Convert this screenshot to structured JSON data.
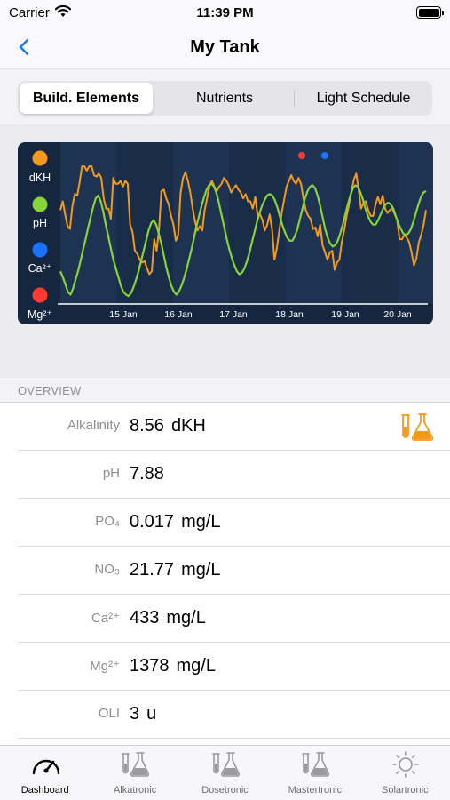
{
  "status_bar": {
    "carrier": "Carrier",
    "time": "11:39 PM"
  },
  "nav": {
    "title": "My Tank",
    "back_icon": "chevron-left-icon"
  },
  "segments": {
    "items": [
      "Build. Elements",
      "Nutrients",
      "Light Schedule"
    ],
    "selected": "Build. Elements"
  },
  "chart": {
    "legend": [
      {
        "label": "dKH",
        "color": "#f39a1e"
      },
      {
        "label": "pH",
        "color": "#86d43a"
      },
      {
        "label": "Ca²⁺",
        "color": "#1a73ff"
      },
      {
        "label": "Mg²⁺",
        "color": "#ff3b30"
      }
    ]
  },
  "chart_data": {
    "type": "line",
    "x_ticks": [
      "15 Jan",
      "16 Jan",
      "17 Jan",
      "18 Jan",
      "19 Jan",
      "20 Jan"
    ],
    "series": [
      {
        "name": "dKH",
        "color": "#f39a1e",
        "values": [
          0.62,
          0.68,
          0.59,
          0.51,
          0.49,
          0.65,
          0.73,
          0.72,
          0.81,
          0.92,
          0.92,
          0.89,
          0.92,
          0.92,
          0.86,
          0.85,
          0.87,
          0.84,
          0.7,
          0.63,
          0.63,
          0.56,
          0.84,
          0.8,
          0.8,
          0.82,
          0.78,
          0.82,
          0.8,
          0.52,
          0.47,
          0.34,
          0.32,
          0.28,
          0.26,
          0.27,
          0.22,
          0.18,
          0.2,
          0.42,
          0.34,
          0.48,
          0.75,
          0.76,
          0.7,
          0.66,
          0.58,
          0.52,
          0.41,
          0.45,
          0.74,
          0.84,
          0.88,
          0.82,
          0.74,
          0.63,
          0.54,
          0.48,
          0.51,
          0.48,
          0.62,
          0.7,
          0.79,
          0.82,
          0.78,
          0.75,
          0.78,
          0.8,
          0.84,
          0.82,
          0.79,
          0.74,
          0.77,
          0.79,
          0.76,
          0.74,
          0.7,
          0.73,
          0.68,
          0.68,
          0.63,
          0.71,
          0.58,
          0.59,
          0.55,
          0.48,
          0.52,
          0.59,
          0.49,
          0.28,
          0.36,
          0.48,
          0.6,
          0.69,
          0.78,
          0.82,
          0.86,
          0.82,
          0.8,
          0.84,
          0.8,
          0.7,
          0.62,
          0.58,
          0.56,
          0.49,
          0.5,
          0.44,
          0.52,
          0.38,
          0.33,
          0.28,
          0.33,
          0.34,
          0.21,
          0.26,
          0.28,
          0.4,
          0.48,
          0.58,
          0.66,
          0.75,
          0.83,
          0.87,
          0.76,
          0.63,
          0.67,
          0.68,
          0.62,
          0.58,
          0.58,
          0.66,
          0.71,
          0.66,
          0.72,
          0.63,
          0.6,
          0.62,
          0.63,
          0.59,
          0.55,
          0.42,
          0.42,
          0.45,
          0.43,
          0.4,
          0.33,
          0.24,
          0.29,
          0.4,
          0.45,
          0.52,
          0.62
        ]
      },
      {
        "name": "pH",
        "color": "#86d43a",
        "values": [
          0.2,
          0.16,
          0.11,
          0.06,
          0.04,
          0.08,
          0.14,
          0.2,
          0.27,
          0.35,
          0.42,
          0.5,
          0.57,
          0.64,
          0.7,
          0.72,
          0.68,
          0.61,
          0.52,
          0.44,
          0.36,
          0.28,
          0.22,
          0.16,
          0.1,
          0.06,
          0.04,
          0.03,
          0.05,
          0.09,
          0.14,
          0.2,
          0.27,
          0.34,
          0.41,
          0.48,
          0.53,
          0.55,
          0.52,
          0.46,
          0.39,
          0.31,
          0.23,
          0.16,
          0.1,
          0.06,
          0.04,
          0.06,
          0.1,
          0.15,
          0.21,
          0.28,
          0.35,
          0.43,
          0.51,
          0.58,
          0.65,
          0.71,
          0.76,
          0.79,
          0.8,
          0.78,
          0.73,
          0.66,
          0.58,
          0.5,
          0.42,
          0.35,
          0.29,
          0.24,
          0.2,
          0.18,
          0.19,
          0.22,
          0.27,
          0.33,
          0.4,
          0.47,
          0.54,
          0.6,
          0.65,
          0.69,
          0.72,
          0.73,
          0.72,
          0.69,
          0.64,
          0.58,
          0.52,
          0.47,
          0.43,
          0.41,
          0.41,
          0.44,
          0.49,
          0.56,
          0.63,
          0.7,
          0.75,
          0.78,
          0.79,
          0.77,
          0.72,
          0.65,
          0.57,
          0.49,
          0.43,
          0.39,
          0.37,
          0.38,
          0.41,
          0.46,
          0.52,
          0.59,
          0.66,
          0.72,
          0.77,
          0.79,
          0.78,
          0.74,
          0.69,
          0.63,
          0.58,
          0.54,
          0.52,
          0.52,
          0.55,
          0.59,
          0.63,
          0.66,
          0.67,
          0.66,
          0.63,
          0.58,
          0.53,
          0.49,
          0.46,
          0.45,
          0.46,
          0.49,
          0.54,
          0.6,
          0.66,
          0.71,
          0.74,
          0.75
        ]
      }
    ],
    "ylim": [
      0,
      1
    ]
  },
  "overview": {
    "header": "OVERVIEW",
    "rows": [
      {
        "label": "Alkalinity",
        "value": "8.56",
        "unit": "dKH"
      },
      {
        "label": "pH",
        "value": "7.88",
        "unit": ""
      },
      {
        "label": "PO₄",
        "value": "0.017",
        "unit": "mg/L"
      },
      {
        "label": "NO₃",
        "value": "21.77",
        "unit": "mg/L"
      },
      {
        "label": "Ca²⁺",
        "value": "433",
        "unit": "mg/L"
      },
      {
        "label": "Mg²⁺",
        "value": "1378",
        "unit": "mg/L"
      },
      {
        "label": "OLI",
        "value": "3",
        "unit": "u"
      }
    ],
    "accent_icon": "test-tubes-flask-icon",
    "accent_color": "#f39a1e"
  },
  "tabs": [
    {
      "label": "Dashboard",
      "icon": "gauge-icon"
    },
    {
      "label": "Alkatronic",
      "icon": "test-tubes-flask-icon"
    },
    {
      "label": "Dosetronic",
      "icon": "test-tubes-flask-icon"
    },
    {
      "label": "Mastertronic",
      "icon": "test-tubes-flask-icon"
    },
    {
      "label": "Solartronic",
      "icon": "sun-icon"
    }
  ],
  "selected_tab": "Dashboard"
}
